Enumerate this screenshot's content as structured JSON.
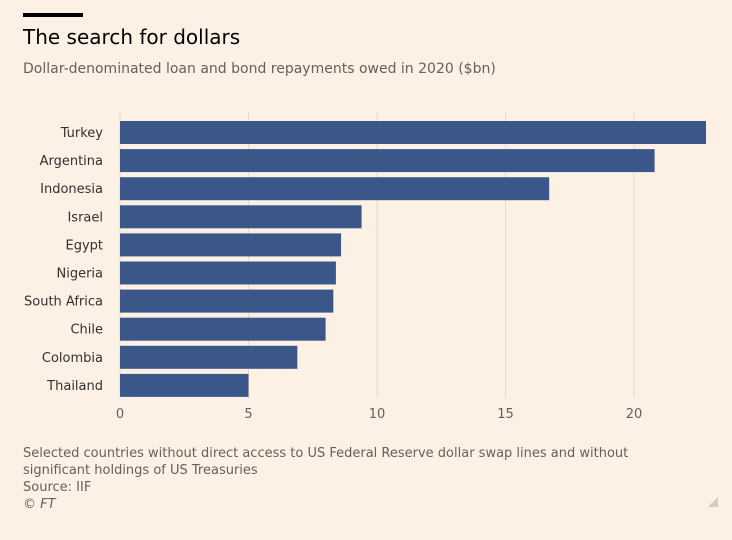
{
  "header": {
    "title": "The search for dollars",
    "subtitle": "Dollar-denominated loan and bond repayments owed in 2020 ($bn)"
  },
  "footer": {
    "note": "Selected countries without direct access to US Federal Reserve dollar swap lines and without significant holdings of US Treasuries",
    "source": "Source: IIF",
    "credit": "© FT"
  },
  "colors": {
    "bar": "#3b5689",
    "grid": "#e7d9cc",
    "background": "#fdf1e6"
  },
  "icons": {
    "resize": "resize-handle-icon"
  },
  "chart_data": {
    "type": "bar",
    "orientation": "horizontal",
    "title": "The search for dollars",
    "subtitle": "Dollar-denominated loan and bond repayments owed in 2020 ($bn)",
    "categories": [
      "Turkey",
      "Argentina",
      "Indonesia",
      "Israel",
      "Egypt",
      "Nigeria",
      "South Africa",
      "Chile",
      "Colombia",
      "Thailand"
    ],
    "values": [
      22.8,
      20.8,
      16.7,
      9.4,
      8.6,
      8.4,
      8.3,
      8.0,
      6.9,
      5.0
    ],
    "xlim": [
      0,
      22.8
    ],
    "xticks": [
      0,
      5,
      10,
      15,
      20
    ],
    "xlabel": "",
    "ylabel": "",
    "grid": true
  }
}
